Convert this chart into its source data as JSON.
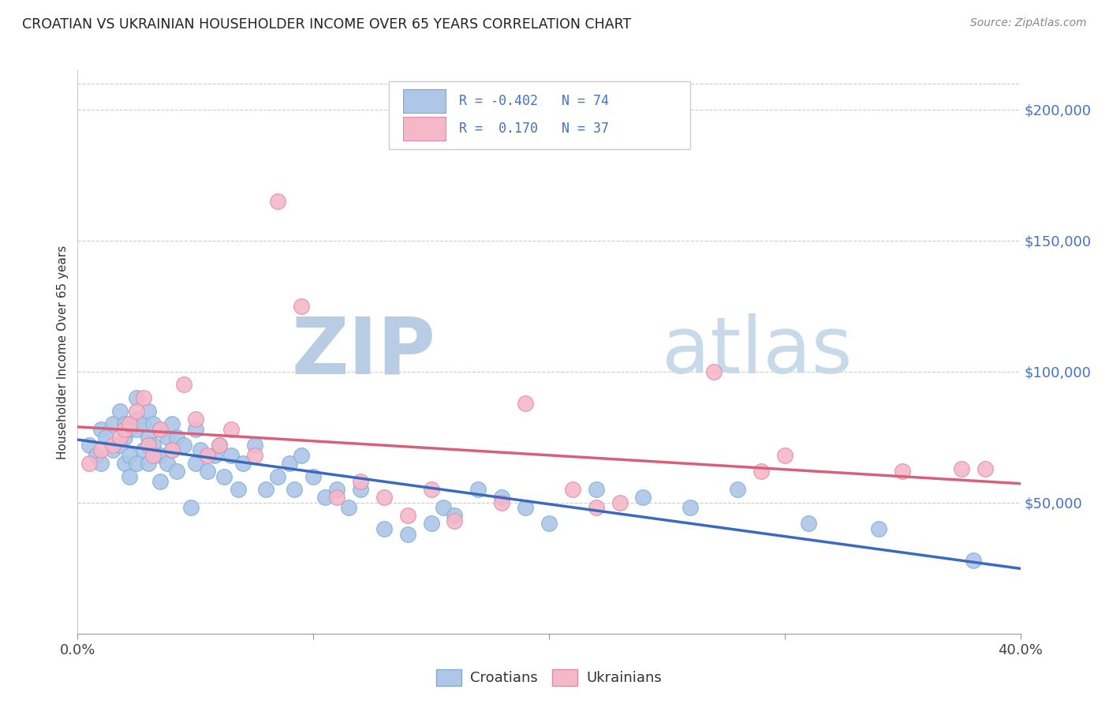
{
  "title": "CROATIAN VS UKRAINIAN HOUSEHOLDER INCOME OVER 65 YEARS CORRELATION CHART",
  "source": "Source: ZipAtlas.com",
  "ylabel": "Householder Income Over 65 years",
  "y_ticks": [
    50000,
    100000,
    150000,
    200000
  ],
  "y_tick_labels": [
    "$50,000",
    "$100,000",
    "$150,000",
    "$200,000"
  ],
  "y_min": 0,
  "y_max": 215000,
  "x_min": 0.0,
  "x_max": 0.4,
  "croatian_color": "#aec6e8",
  "croatian_edge_color": "#7bafd4",
  "ukrainian_color": "#f4b8c8",
  "ukrainian_edge_color": "#e08aaa",
  "trend_croatian_color": "#3a6bbf",
  "trend_ukrainian_color": "#d9607a",
  "legend_color": "#4472c4",
  "croatian_R": "-0.402",
  "croatian_N": "74",
  "ukrainian_R": "0.170",
  "ukrainian_N": "37",
  "croatian_x": [
    0.005,
    0.008,
    0.01,
    0.01,
    0.012,
    0.015,
    0.015,
    0.018,
    0.018,
    0.02,
    0.02,
    0.02,
    0.022,
    0.022,
    0.022,
    0.025,
    0.025,
    0.025,
    0.025,
    0.028,
    0.028,
    0.03,
    0.03,
    0.03,
    0.032,
    0.032,
    0.035,
    0.035,
    0.035,
    0.038,
    0.038,
    0.04,
    0.04,
    0.042,
    0.042,
    0.045,
    0.048,
    0.05,
    0.05,
    0.052,
    0.055,
    0.058,
    0.06,
    0.062,
    0.065,
    0.068,
    0.07,
    0.075,
    0.08,
    0.085,
    0.09,
    0.092,
    0.095,
    0.1,
    0.105,
    0.11,
    0.115,
    0.12,
    0.13,
    0.14,
    0.15,
    0.155,
    0.16,
    0.17,
    0.18,
    0.19,
    0.2,
    0.22,
    0.24,
    0.26,
    0.28,
    0.31,
    0.34,
    0.38
  ],
  "croatian_y": [
    72000,
    68000,
    78000,
    65000,
    75000,
    80000,
    70000,
    85000,
    72000,
    80000,
    75000,
    65000,
    78000,
    68000,
    60000,
    90000,
    82000,
    78000,
    65000,
    80000,
    70000,
    85000,
    75000,
    65000,
    80000,
    72000,
    78000,
    68000,
    58000,
    75000,
    65000,
    80000,
    70000,
    75000,
    62000,
    72000,
    48000,
    78000,
    65000,
    70000,
    62000,
    68000,
    72000,
    60000,
    68000,
    55000,
    65000,
    72000,
    55000,
    60000,
    65000,
    55000,
    68000,
    60000,
    52000,
    55000,
    48000,
    55000,
    40000,
    38000,
    42000,
    48000,
    45000,
    55000,
    52000,
    48000,
    42000,
    55000,
    52000,
    48000,
    55000,
    42000,
    40000,
    28000
  ],
  "ukrainian_x": [
    0.005,
    0.01,
    0.015,
    0.018,
    0.02,
    0.022,
    0.025,
    0.028,
    0.03,
    0.032,
    0.035,
    0.04,
    0.045,
    0.05,
    0.055,
    0.06,
    0.065,
    0.075,
    0.085,
    0.095,
    0.11,
    0.12,
    0.13,
    0.14,
    0.15,
    0.16,
    0.18,
    0.19,
    0.21,
    0.22,
    0.23,
    0.27,
    0.29,
    0.3,
    0.35,
    0.375,
    0.385
  ],
  "ukrainian_y": [
    65000,
    70000,
    72000,
    75000,
    78000,
    80000,
    85000,
    90000,
    72000,
    68000,
    78000,
    70000,
    95000,
    82000,
    68000,
    72000,
    78000,
    68000,
    165000,
    125000,
    52000,
    58000,
    52000,
    45000,
    55000,
    43000,
    50000,
    88000,
    55000,
    48000,
    50000,
    100000,
    62000,
    68000,
    62000,
    63000,
    63000
  ]
}
